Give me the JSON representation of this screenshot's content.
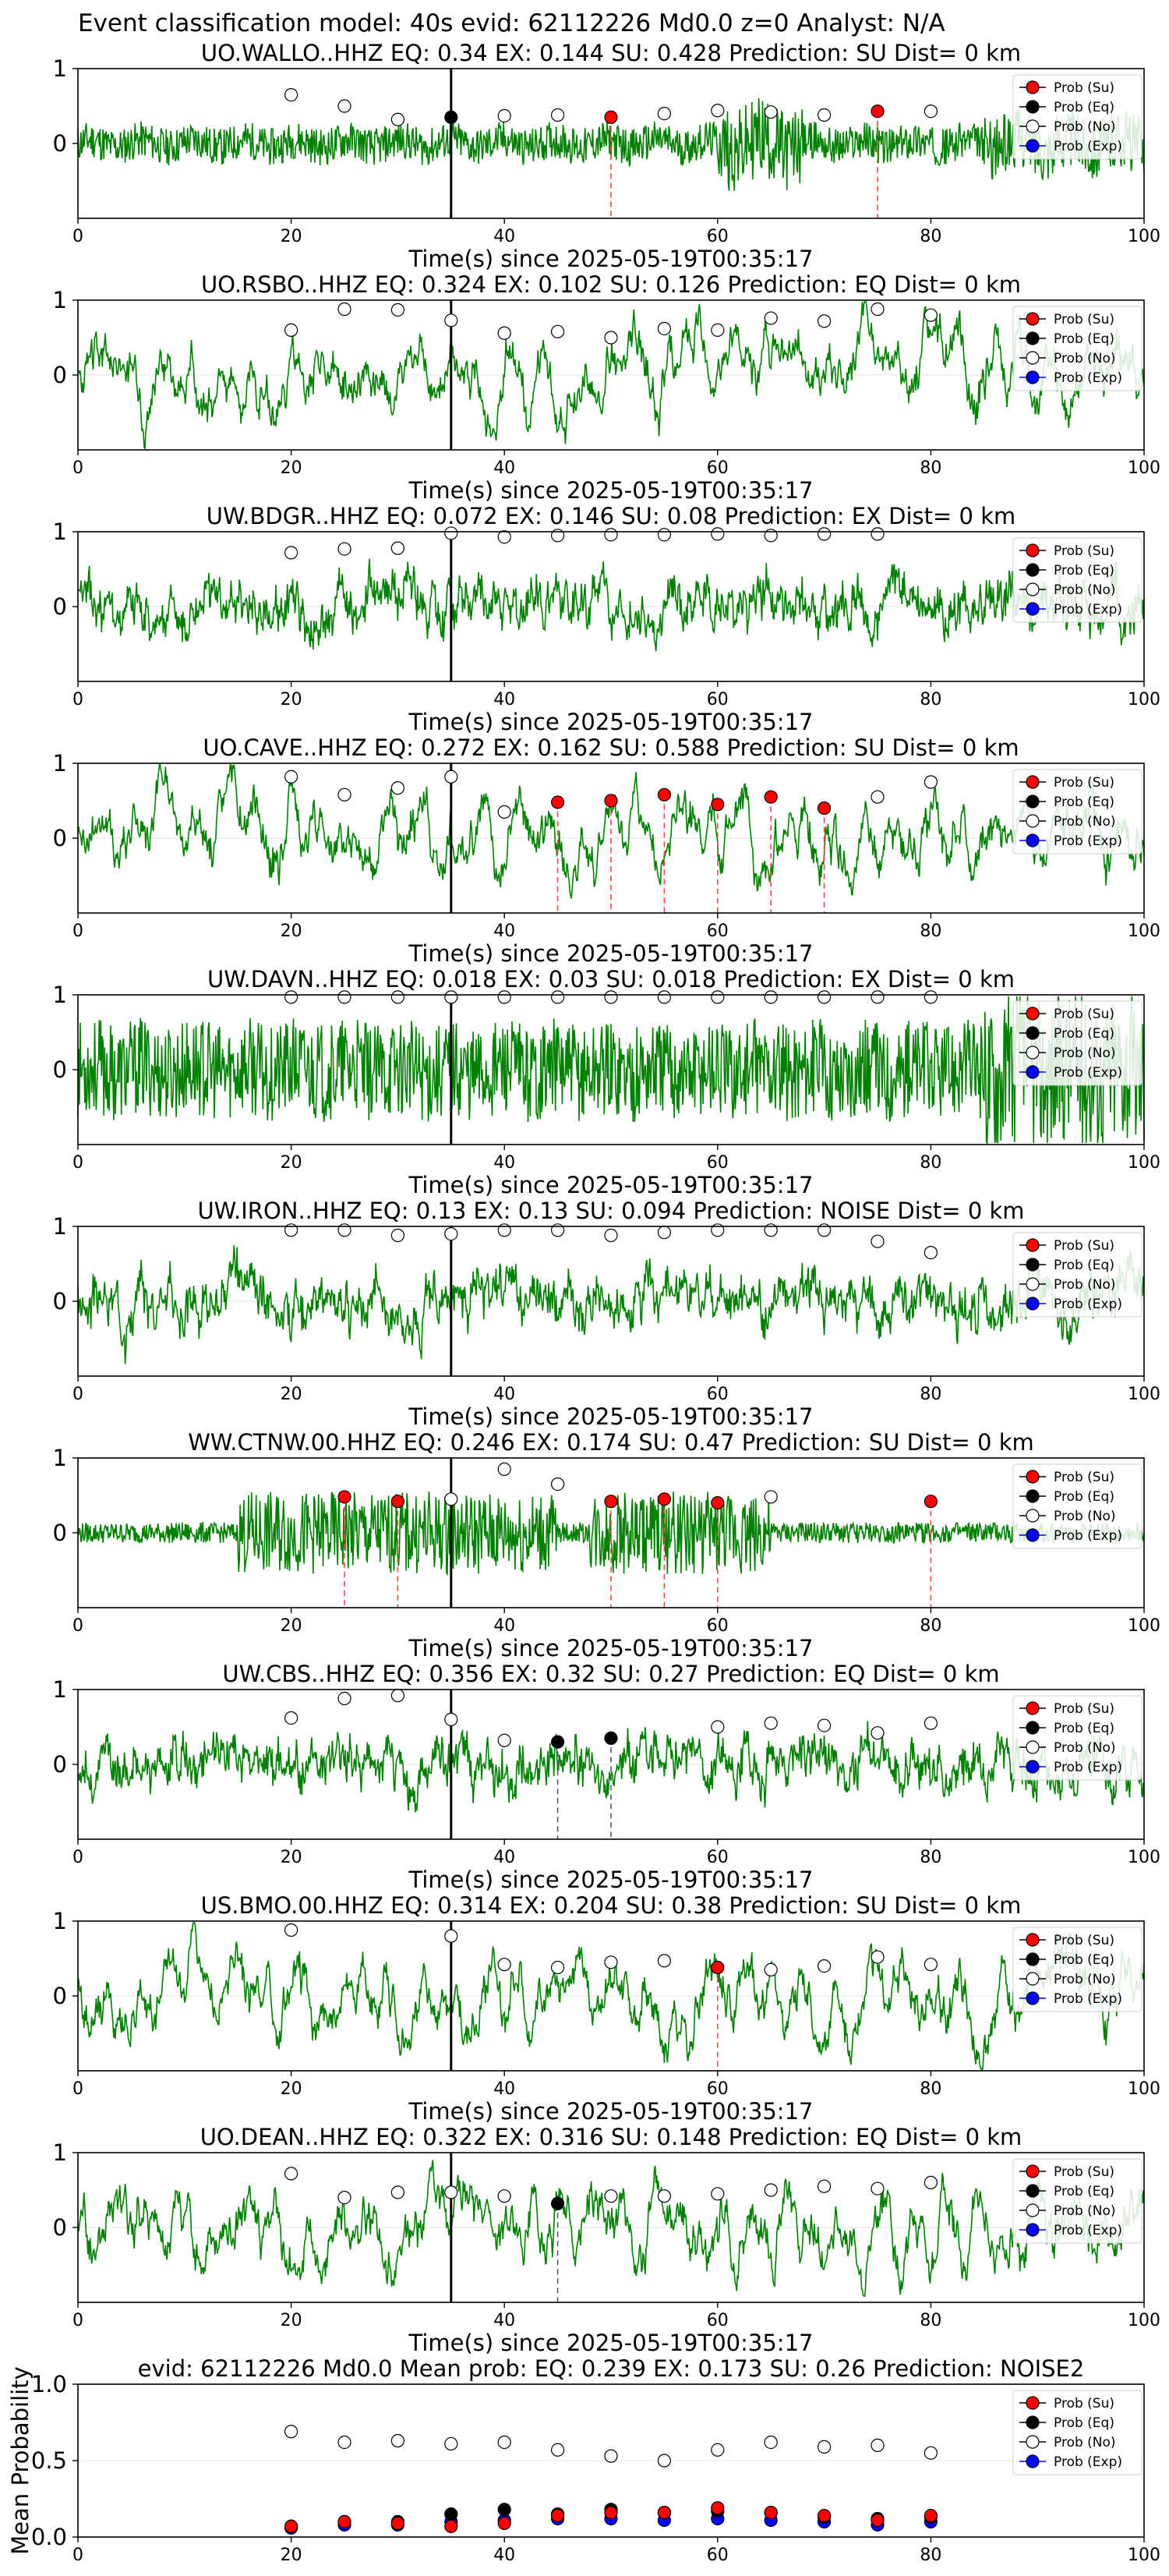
{
  "suptitle": "Event classification model: 40s evid: 62112226 Md0.0 z=0 Analyst: N/A",
  "legend_labels": [
    "Prob (Su)",
    "Prob (Eq)",
    "Prob (No)",
    "Prob (Exp)"
  ],
  "colors": {
    "waveform": "#008000",
    "su": "#ff0000",
    "eq": "#000000",
    "no": "#ffffff",
    "exp": "#0000ff",
    "su_line": "#ff4444",
    "eq_line": "#555577"
  },
  "chart_data": [
    {
      "type": "scatter",
      "station": "UO.WALLO..HHZ",
      "title": "UO.WALLO..HHZ   EQ: 0.34   EX: 0.144   SU: 0.428   Prediction: SU    Dist= 0 km",
      "xlabel": "Time(s) since 2025-05-19T00:35:17",
      "xlim": [
        0,
        100
      ],
      "ylim": [
        -1,
        1
      ],
      "xticks": [
        0,
        20,
        40,
        60,
        80,
        100
      ],
      "yticks": [
        0,
        1
      ],
      "pick_time": 35,
      "noise": "hf",
      "seed": 11,
      "points": [
        {
          "x": 20,
          "y": 0.65,
          "c": "no"
        },
        {
          "x": 25,
          "y": 0.5,
          "c": "no"
        },
        {
          "x": 30,
          "y": 0.32,
          "c": "no"
        },
        {
          "x": 35,
          "y": 0.35,
          "c": "eq"
        },
        {
          "x": 40,
          "y": 0.37,
          "c": "no"
        },
        {
          "x": 45,
          "y": 0.38,
          "c": "no"
        },
        {
          "x": 50,
          "y": 0.35,
          "c": "su"
        },
        {
          "x": 55,
          "y": 0.4,
          "c": "no"
        },
        {
          "x": 60,
          "y": 0.44,
          "c": "no"
        },
        {
          "x": 65,
          "y": 0.42,
          "c": "no"
        },
        {
          "x": 70,
          "y": 0.38,
          "c": "no"
        },
        {
          "x": 75,
          "y": 0.43,
          "c": "su"
        },
        {
          "x": 80,
          "y": 0.43,
          "c": "no"
        }
      ]
    },
    {
      "type": "scatter",
      "station": "UO.RSBO..HHZ",
      "title": "UO.RSBO..HHZ   EQ: 0.324   EX: 0.102   SU: 0.126   Prediction: EQ    Dist= 0 km",
      "xlabel": "Time(s) since 2025-05-19T00:35:17",
      "xlim": [
        0,
        100
      ],
      "ylim": [
        -1,
        1
      ],
      "xticks": [
        0,
        20,
        40,
        60,
        80,
        100
      ],
      "yticks": [
        0,
        1
      ],
      "pick_time": 35,
      "noise": "lf",
      "seed": 23,
      "points": [
        {
          "x": 20,
          "y": 0.6,
          "c": "no"
        },
        {
          "x": 25,
          "y": 0.88,
          "c": "no"
        },
        {
          "x": 30,
          "y": 0.87,
          "c": "no"
        },
        {
          "x": 35,
          "y": 0.73,
          "c": "no"
        },
        {
          "x": 40,
          "y": 0.56,
          "c": "no"
        },
        {
          "x": 45,
          "y": 0.58,
          "c": "no"
        },
        {
          "x": 50,
          "y": 0.5,
          "c": "no"
        },
        {
          "x": 55,
          "y": 0.62,
          "c": "no"
        },
        {
          "x": 60,
          "y": 0.6,
          "c": "no"
        },
        {
          "x": 65,
          "y": 0.76,
          "c": "no"
        },
        {
          "x": 70,
          "y": 0.72,
          "c": "no"
        },
        {
          "x": 75,
          "y": 0.88,
          "c": "no"
        },
        {
          "x": 80,
          "y": 0.8,
          "c": "no"
        }
      ]
    },
    {
      "type": "scatter",
      "station": "UW.BDGR..HHZ",
      "title": "UW.BDGR..HHZ   EQ: 0.072   EX: 0.146   SU: 0.08    Prediction: EX    Dist= 0 km",
      "xlabel": "Time(s) since 2025-05-19T00:35:17",
      "xlim": [
        0,
        100
      ],
      "ylim": [
        -1,
        1
      ],
      "xticks": [
        0,
        20,
        40,
        60,
        80,
        100
      ],
      "yticks": [
        0,
        1
      ],
      "pick_time": 35,
      "noise": "mix",
      "seed": 37,
      "points": [
        {
          "x": 20,
          "y": 0.72,
          "c": "no"
        },
        {
          "x": 25,
          "y": 0.77,
          "c": "no"
        },
        {
          "x": 30,
          "y": 0.78,
          "c": "no"
        },
        {
          "x": 35,
          "y": 0.98,
          "c": "no"
        },
        {
          "x": 40,
          "y": 0.93,
          "c": "no"
        },
        {
          "x": 45,
          "y": 0.95,
          "c": "no"
        },
        {
          "x": 50,
          "y": 0.96,
          "c": "no"
        },
        {
          "x": 55,
          "y": 0.96,
          "c": "no"
        },
        {
          "x": 60,
          "y": 0.97,
          "c": "no"
        },
        {
          "x": 65,
          "y": 0.95,
          "c": "no"
        },
        {
          "x": 70,
          "y": 0.97,
          "c": "no"
        },
        {
          "x": 75,
          "y": 0.97,
          "c": "no"
        }
      ]
    },
    {
      "type": "scatter",
      "station": "UO.CAVE..HHZ",
      "title": "UO.CAVE..HHZ   EQ: 0.272   EX: 0.162   SU: 0.588   Prediction: SU    Dist= 0 km",
      "xlabel": "Time(s) since 2025-05-19T00:35:17",
      "xlim": [
        0,
        100
      ],
      "ylim": [
        -1,
        1
      ],
      "xticks": [
        0,
        20,
        40,
        60,
        80,
        100
      ],
      "yticks": [
        0,
        1
      ],
      "pick_time": 35,
      "noise": "lf",
      "seed": 41,
      "points": [
        {
          "x": 20,
          "y": 0.82,
          "c": "no"
        },
        {
          "x": 25,
          "y": 0.58,
          "c": "no"
        },
        {
          "x": 30,
          "y": 0.67,
          "c": "no"
        },
        {
          "x": 35,
          "y": 0.82,
          "c": "no"
        },
        {
          "x": 40,
          "y": 0.35,
          "c": "no"
        },
        {
          "x": 45,
          "y": 0.48,
          "c": "su"
        },
        {
          "x": 50,
          "y": 0.5,
          "c": "su"
        },
        {
          "x": 55,
          "y": 0.58,
          "c": "su"
        },
        {
          "x": 60,
          "y": 0.45,
          "c": "su"
        },
        {
          "x": 65,
          "y": 0.55,
          "c": "su"
        },
        {
          "x": 70,
          "y": 0.4,
          "c": "su"
        },
        {
          "x": 75,
          "y": 0.55,
          "c": "no"
        },
        {
          "x": 80,
          "y": 0.75,
          "c": "no"
        }
      ]
    },
    {
      "type": "scatter",
      "station": "UW.DAVN..HHZ",
      "title": "UW.DAVN..HHZ   EQ: 0.018   EX: 0.03   SU: 0.018    Prediction: EX    Dist= 0 km",
      "xlabel": "Time(s) since 2025-05-19T00:35:17",
      "xlim": [
        0,
        100
      ],
      "ylim": [
        -1,
        1
      ],
      "xticks": [
        0,
        20,
        40,
        60,
        80,
        100
      ],
      "yticks": [
        0,
        1
      ],
      "pick_time": 35,
      "noise": "hf2",
      "seed": 53,
      "points": [
        {
          "x": 20,
          "y": 0.97,
          "c": "no"
        },
        {
          "x": 25,
          "y": 0.97,
          "c": "no"
        },
        {
          "x": 30,
          "y": 0.97,
          "c": "no"
        },
        {
          "x": 35,
          "y": 0.97,
          "c": "no"
        },
        {
          "x": 40,
          "y": 0.97,
          "c": "no"
        },
        {
          "x": 45,
          "y": 0.97,
          "c": "no"
        },
        {
          "x": 50,
          "y": 0.97,
          "c": "no"
        },
        {
          "x": 55,
          "y": 0.97,
          "c": "no"
        },
        {
          "x": 60,
          "y": 0.97,
          "c": "no"
        },
        {
          "x": 65,
          "y": 0.97,
          "c": "no"
        },
        {
          "x": 70,
          "y": 0.97,
          "c": "no"
        },
        {
          "x": 75,
          "y": 0.97,
          "c": "no"
        },
        {
          "x": 80,
          "y": 0.97,
          "c": "no"
        }
      ]
    },
    {
      "type": "scatter",
      "station": "UW.IRON..HHZ",
      "title": "UW.IRON..HHZ   EQ: 0.13   EX: 0.13   SU: 0.094    Prediction: NOISE    Dist= 0 km",
      "xlabel": "Time(s) since 2025-05-19T00:35:17",
      "xlim": [
        0,
        100
      ],
      "ylim": [
        -1,
        1
      ],
      "xticks": [
        0,
        20,
        40,
        60,
        80,
        100
      ],
      "yticks": [
        0,
        1
      ],
      "pick_time": 35,
      "noise": "mix",
      "seed": 67,
      "points": [
        {
          "x": 20,
          "y": 0.95,
          "c": "no"
        },
        {
          "x": 25,
          "y": 0.95,
          "c": "no"
        },
        {
          "x": 30,
          "y": 0.88,
          "c": "no"
        },
        {
          "x": 35,
          "y": 0.9,
          "c": "no"
        },
        {
          "x": 40,
          "y": 0.95,
          "c": "no"
        },
        {
          "x": 45,
          "y": 0.95,
          "c": "no"
        },
        {
          "x": 50,
          "y": 0.88,
          "c": "no"
        },
        {
          "x": 55,
          "y": 0.92,
          "c": "no"
        },
        {
          "x": 60,
          "y": 0.95,
          "c": "no"
        },
        {
          "x": 65,
          "y": 0.95,
          "c": "no"
        },
        {
          "x": 70,
          "y": 0.95,
          "c": "no"
        },
        {
          "x": 75,
          "y": 0.8,
          "c": "no"
        },
        {
          "x": 80,
          "y": 0.65,
          "c": "no"
        }
      ]
    },
    {
      "type": "scatter",
      "station": "WW.CTNW.00.HHZ",
      "title": "WW.CTNW.00.HHZ   EQ: 0.246   EX: 0.174   SU: 0.47    Prediction: SU    Dist= 0 km",
      "xlabel": "Time(s) since 2025-05-19T00:35:17",
      "xlim": [
        0,
        100
      ],
      "ylim": [
        -1,
        1
      ],
      "xticks": [
        0,
        20,
        40,
        60,
        80,
        100
      ],
      "yticks": [
        0,
        1
      ],
      "pick_time": 35,
      "noise": "burst",
      "seed": 79,
      "points": [
        {
          "x": 25,
          "y": 0.48,
          "c": "su"
        },
        {
          "x": 30,
          "y": 0.42,
          "c": "su"
        },
        {
          "x": 35,
          "y": 0.45,
          "c": "no"
        },
        {
          "x": 40,
          "y": 0.85,
          "c": "no"
        },
        {
          "x": 45,
          "y": 0.65,
          "c": "no"
        },
        {
          "x": 50,
          "y": 0.42,
          "c": "su"
        },
        {
          "x": 55,
          "y": 0.45,
          "c": "su"
        },
        {
          "x": 60,
          "y": 0.4,
          "c": "su"
        },
        {
          "x": 65,
          "y": 0.48,
          "c": "no"
        },
        {
          "x": 80,
          "y": 0.42,
          "c": "su"
        }
      ]
    },
    {
      "type": "scatter",
      "station": "UW.CBS..HHZ",
      "title": "UW.CBS..HHZ   EQ: 0.356   EX: 0.32   SU: 0.27    Prediction: EQ    Dist= 0 km",
      "xlabel": "Time(s) since 2025-05-19T00:35:17",
      "xlim": [
        0,
        100
      ],
      "ylim": [
        -1,
        1
      ],
      "xticks": [
        0,
        20,
        40,
        60,
        80,
        100
      ],
      "yticks": [
        0,
        1
      ],
      "pick_time": 35,
      "noise": "mix",
      "seed": 83,
      "points": [
        {
          "x": 20,
          "y": 0.62,
          "c": "no"
        },
        {
          "x": 25,
          "y": 0.88,
          "c": "no"
        },
        {
          "x": 30,
          "y": 0.92,
          "c": "no"
        },
        {
          "x": 35,
          "y": 0.6,
          "c": "no"
        },
        {
          "x": 40,
          "y": 0.32,
          "c": "no"
        },
        {
          "x": 45,
          "y": 0.3,
          "c": "eq"
        },
        {
          "x": 50,
          "y": 0.35,
          "c": "eq"
        },
        {
          "x": 60,
          "y": 0.5,
          "c": "no"
        },
        {
          "x": 65,
          "y": 0.55,
          "c": "no"
        },
        {
          "x": 70,
          "y": 0.52,
          "c": "no"
        },
        {
          "x": 75,
          "y": 0.42,
          "c": "no"
        },
        {
          "x": 80,
          "y": 0.55,
          "c": "no"
        }
      ]
    },
    {
      "type": "scatter",
      "station": "US.BMO.00.HHZ",
      "title": "US.BMO.00.HHZ   EQ: 0.314   EX: 0.204   SU: 0.38    Prediction: SU    Dist= 0 km",
      "xlabel": "Time(s) since 2025-05-19T00:35:17",
      "xlim": [
        0,
        100
      ],
      "ylim": [
        -1,
        1
      ],
      "xticks": [
        0,
        20,
        40,
        60,
        80,
        100
      ],
      "yticks": [
        0,
        1
      ],
      "pick_time": 35,
      "noise": "lf",
      "seed": 97,
      "points": [
        {
          "x": 20,
          "y": 0.88,
          "c": "no"
        },
        {
          "x": 35,
          "y": 0.8,
          "c": "no"
        },
        {
          "x": 40,
          "y": 0.42,
          "c": "no"
        },
        {
          "x": 45,
          "y": 0.38,
          "c": "no"
        },
        {
          "x": 50,
          "y": 0.45,
          "c": "no"
        },
        {
          "x": 55,
          "y": 0.47,
          "c": "no"
        },
        {
          "x": 60,
          "y": 0.38,
          "c": "su"
        },
        {
          "x": 65,
          "y": 0.35,
          "c": "no"
        },
        {
          "x": 70,
          "y": 0.4,
          "c": "no"
        },
        {
          "x": 75,
          "y": 0.52,
          "c": "no"
        },
        {
          "x": 80,
          "y": 0.42,
          "c": "no"
        }
      ]
    },
    {
      "type": "scatter",
      "station": "UO.DEAN..HHZ",
      "title": "UO.DEAN..HHZ   EQ: 0.322   EX: 0.316   SU: 0.148    Prediction: EQ    Dist= 0 km",
      "xlabel": "Time(s) since 2025-05-19T00:35:17",
      "xlim": [
        0,
        100
      ],
      "ylim": [
        -1,
        1
      ],
      "xticks": [
        0,
        20,
        40,
        60,
        80,
        100
      ],
      "yticks": [
        0,
        1
      ],
      "pick_time": 35,
      "noise": "lf",
      "seed": 101,
      "points": [
        {
          "x": 20,
          "y": 0.72,
          "c": "no"
        },
        {
          "x": 25,
          "y": 0.4,
          "c": "no"
        },
        {
          "x": 30,
          "y": 0.47,
          "c": "no"
        },
        {
          "x": 35,
          "y": 0.47,
          "c": "no"
        },
        {
          "x": 40,
          "y": 0.42,
          "c": "no"
        },
        {
          "x": 45,
          "y": 0.32,
          "c": "eq"
        },
        {
          "x": 50,
          "y": 0.42,
          "c": "no"
        },
        {
          "x": 55,
          "y": 0.42,
          "c": "no"
        },
        {
          "x": 60,
          "y": 0.45,
          "c": "no"
        },
        {
          "x": 65,
          "y": 0.5,
          "c": "no"
        },
        {
          "x": 70,
          "y": 0.55,
          "c": "no"
        },
        {
          "x": 75,
          "y": 0.52,
          "c": "no"
        },
        {
          "x": 80,
          "y": 0.6,
          "c": "no"
        }
      ]
    },
    {
      "type": "scatter",
      "station": "summary",
      "title": "evid: 62112226  Md0.0    Mean prob:    EQ: 0.239   EX: 0.173   SU: 0.26    Prediction: NOISE2",
      "xlabel": "",
      "ylabel": "Mean Probability",
      "xlim": [
        0,
        100
      ],
      "ylim": [
        0,
        1
      ],
      "xticks": [
        0,
        20,
        40,
        60,
        80,
        100
      ],
      "yticks": [
        0.0,
        0.5,
        1.0
      ],
      "ytick_labels": [
        "0.0",
        "0.5",
        "1.0"
      ],
      "x": [
        20,
        25,
        30,
        35,
        40,
        45,
        50,
        55,
        60,
        65,
        70,
        75,
        80
      ],
      "series": [
        {
          "name": "Prob (No)",
          "c": "no",
          "values": [
            0.69,
            0.62,
            0.63,
            0.61,
            0.62,
            0.57,
            0.53,
            0.5,
            0.57,
            0.62,
            0.59,
            0.6,
            0.55
          ]
        },
        {
          "name": "Prob (Exp)",
          "c": "exp",
          "values": [
            0.06,
            0.08,
            0.08,
            0.1,
            0.11,
            0.12,
            0.12,
            0.11,
            0.12,
            0.11,
            0.1,
            0.08,
            0.1
          ]
        },
        {
          "name": "Prob (Eq)",
          "c": "eq",
          "values": [
            0.07,
            0.1,
            0.1,
            0.15,
            0.18,
            0.15,
            0.18,
            0.16,
            0.17,
            0.16,
            0.13,
            0.12,
            0.13
          ]
        },
        {
          "name": "Prob (Su)",
          "c": "su",
          "values": [
            0.07,
            0.1,
            0.09,
            0.07,
            0.09,
            0.14,
            0.16,
            0.16,
            0.19,
            0.16,
            0.14,
            0.11,
            0.14
          ]
        }
      ]
    }
  ]
}
